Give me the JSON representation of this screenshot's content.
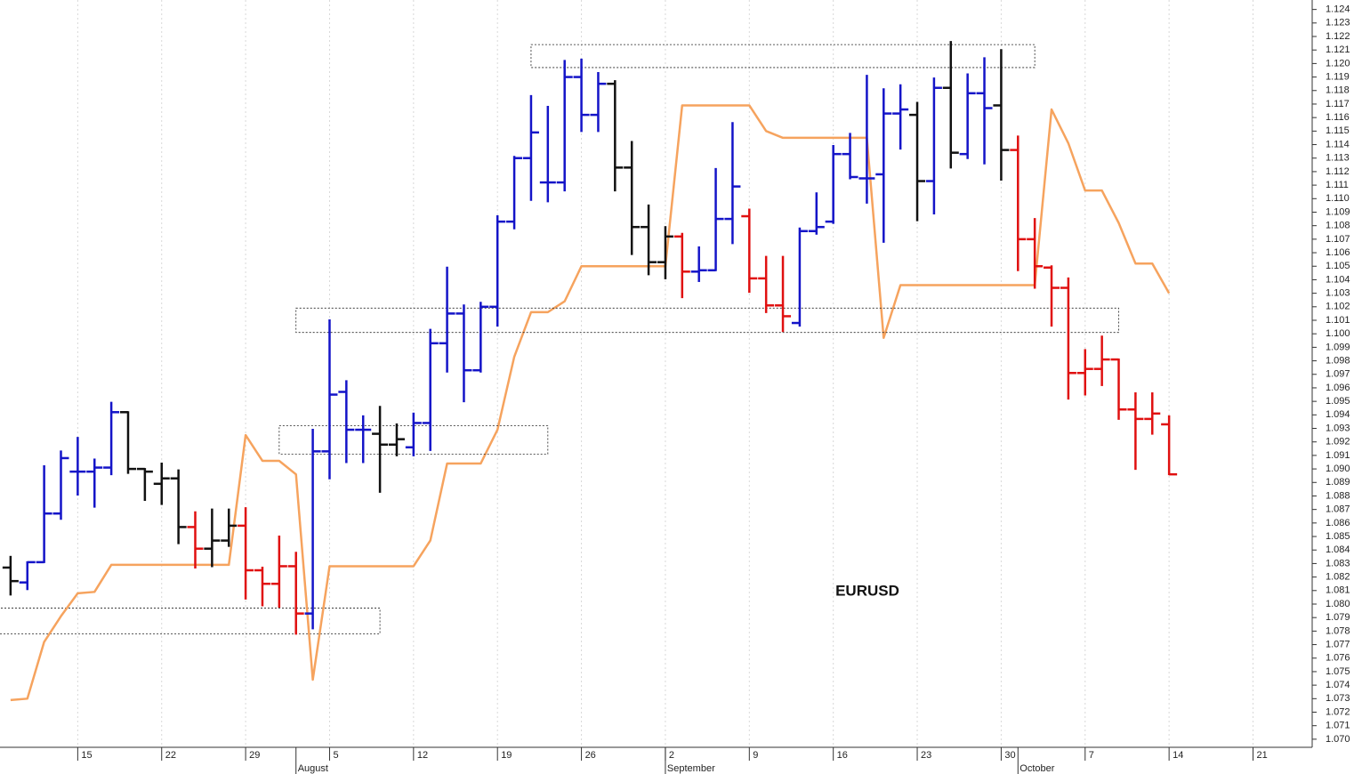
{
  "chart_data": {
    "type": "ohlc",
    "annotation": "EURUSD",
    "x": [
      "07-09",
      "07-10",
      "07-11",
      "07-12",
      "07-15",
      "07-16",
      "07-17",
      "07-18",
      "07-19",
      "07-22",
      "07-23",
      "07-24",
      "07-25",
      "07-26",
      "07-29",
      "07-30",
      "07-31",
      "08-01",
      "08-02",
      "08-05",
      "08-06",
      "08-07",
      "08-08",
      "08-09",
      "08-12",
      "08-13",
      "08-14",
      "08-15",
      "08-16",
      "08-19",
      "08-20",
      "08-21",
      "08-22",
      "08-23",
      "08-26",
      "08-27",
      "08-28",
      "08-29",
      "08-30",
      "09-02",
      "09-03",
      "09-04",
      "09-05",
      "09-06",
      "09-09",
      "09-10",
      "09-11",
      "09-12",
      "09-13",
      "09-16",
      "09-17",
      "09-18",
      "09-19",
      "09-20",
      "09-23",
      "09-24",
      "09-25",
      "09-26",
      "09-27",
      "09-30",
      "10-01",
      "10-02",
      "10-03",
      "10-04",
      "10-07",
      "10-08",
      "10-09",
      "10-10",
      "10-11",
      "10-14"
    ],
    "open": [
      1.0827,
      1.0816,
      1.0831,
      1.0867,
      1.0898,
      1.0898,
      1.0901,
      1.0942,
      1.09,
      1.0889,
      1.0893,
      1.0857,
      1.0841,
      1.0847,
      1.0858,
      1.0825,
      1.0815,
      1.0828,
      1.0793,
      1.0913,
      1.0957,
      1.0929,
      1.0926,
      1.0918,
      1.0916,
      1.0934,
      1.0993,
      1.1015,
      1.0973,
      1.102,
      1.1083,
      1.113,
      1.1112,
      1.1112,
      1.119,
      1.1162,
      1.1185,
      1.1123,
      1.1079,
      1.1053,
      1.1072,
      1.1046,
      1.1047,
      1.1085,
      1.1087,
      1.1041,
      1.1021,
      1.1008,
      1.1076,
      1.1083,
      1.1133,
      1.1115,
      1.1118,
      1.1163,
      1.1162,
      1.1113,
      1.1182,
      1.1133,
      1.1178,
      1.1169,
      1.1136,
      1.107,
      1.1049,
      1.1034,
      1.0971,
      1.0974,
      1.0981,
      1.0944,
      1.0937,
      1.0933
    ],
    "high": [
      1.0835,
      1.0831,
      1.0902,
      1.0913,
      1.0923,
      1.0907,
      1.0949,
      1.0942,
      1.09,
      1.0904,
      1.0899,
      1.0868,
      1.087,
      1.087,
      1.0871,
      1.0827,
      1.085,
      1.0838,
      1.0929,
      1.101,
      1.0965,
      1.0939,
      1.0946,
      1.0933,
      1.0941,
      1.1003,
      1.1049,
      1.1021,
      1.1023,
      1.1087,
      1.1131,
      1.1176,
      1.1168,
      1.1202,
      1.1203,
      1.1193,
      1.1187,
      1.1142,
      1.1095,
      1.1079,
      1.1074,
      1.1064,
      1.1122,
      1.1156,
      1.1092,
      1.1057,
      1.1057,
      1.1078,
      1.1104,
      1.1139,
      1.1148,
      1.1191,
      1.1181,
      1.1184,
      1.1171,
      1.1189,
      1.1216,
      1.1192,
      1.1204,
      1.121,
      1.1146,
      1.1085,
      1.105,
      1.1041,
      1.0988,
      1.0998,
      1.0981,
      1.0956,
      1.0956,
      1.0939
    ],
    "low": [
      1.0807,
      1.0811,
      1.0831,
      1.0863,
      1.0881,
      1.0872,
      1.0896,
      1.0897,
      1.0877,
      1.0874,
      1.0845,
      1.0827,
      1.0828,
      1.0843,
      1.0804,
      1.0799,
      1.0798,
      1.0778,
      1.0782,
      1.0893,
      1.0905,
      1.0905,
      1.0883,
      1.091,
      1.091,
      1.0914,
      1.0972,
      1.095,
      1.0972,
      1.1006,
      1.1078,
      1.1099,
      1.1098,
      1.1106,
      1.115,
      1.115,
      1.1106,
      1.1059,
      1.1044,
      1.1041,
      1.1027,
      1.1039,
      1.1047,
      1.1067,
      1.1031,
      1.1016,
      1.1002,
      1.1006,
      1.1074,
      1.1082,
      1.1115,
      1.1097,
      1.1068,
      1.1137,
      1.1084,
      1.1089,
      1.1123,
      1.113,
      1.1126,
      1.1114,
      1.1047,
      1.1034,
      1.1006,
      1.0952,
      1.0955,
      1.0962,
      1.0937,
      1.09,
      1.0926,
      1.0896
    ],
    "close": [
      1.0817,
      1.0831,
      1.0867,
      1.0908,
      1.0898,
      1.0901,
      1.0942,
      1.09,
      1.0898,
      1.0893,
      1.0857,
      1.0841,
      1.0847,
      1.0858,
      1.0825,
      1.0815,
      1.0828,
      1.0793,
      1.0913,
      1.0955,
      1.0929,
      1.0929,
      1.0918,
      1.0922,
      1.0934,
      1.0993,
      1.1015,
      1.0973,
      1.102,
      1.1083,
      1.113,
      1.1149,
      1.1112,
      1.119,
      1.1162,
      1.1185,
      1.1123,
      1.1079,
      1.1053,
      1.1072,
      1.1046,
      1.1047,
      1.1085,
      1.1109,
      1.1041,
      1.1021,
      1.1013,
      1.1076,
      1.1079,
      1.1133,
      1.1116,
      1.1115,
      1.1163,
      1.1166,
      1.1113,
      1.1182,
      1.1134,
      1.1178,
      1.1167,
      1.1136,
      1.107,
      1.105,
      1.1034,
      1.0971,
      1.0974,
      1.0981,
      1.0944,
      1.0937,
      1.0941,
      1.0896
    ],
    "bar_colors": [
      "#111111",
      "#1414c8",
      "#1414c8",
      "#1414c8",
      "#1414c8",
      "#1414c8",
      "#1414c8",
      "#111111",
      "#111111",
      "#111111",
      "#111111",
      "#e01010",
      "#111111",
      "#111111",
      "#e01010",
      "#e01010",
      "#e01010",
      "#e01010",
      "#1414c8",
      "#1414c8",
      "#1414c8",
      "#1414c8",
      "#111111",
      "#111111",
      "#1414c8",
      "#1414c8",
      "#1414c8",
      "#1414c8",
      "#1414c8",
      "#1414c8",
      "#1414c8",
      "#1414c8",
      "#1414c8",
      "#1414c8",
      "#1414c8",
      "#1414c8",
      "#111111",
      "#111111",
      "#111111",
      "#111111",
      "#e01010",
      "#1414c8",
      "#1414c8",
      "#1414c8",
      "#e01010",
      "#e01010",
      "#e01010",
      "#1414c8",
      "#1414c8",
      "#1414c8",
      "#1414c8",
      "#1414c8",
      "#1414c8",
      "#1414c8",
      "#111111",
      "#1414c8",
      "#111111",
      "#1414c8",
      "#1414c8",
      "#111111",
      "#e01010",
      "#e01010",
      "#e01010",
      "#e01010",
      "#e01010",
      "#e01010",
      "#e01010",
      "#e01010",
      "#e01010",
      "#e01010"
    ],
    "line": {
      "color": "#f6a35e",
      "values": [
        1.0729,
        1.073,
        1.0772,
        1.0791,
        1.0808,
        1.0809,
        1.0829,
        1.0829,
        1.0829,
        1.0829,
        1.0829,
        1.0829,
        1.0829,
        1.0829,
        1.0925,
        1.0906,
        1.0906,
        1.0896,
        1.0744,
        1.0828,
        1.0828,
        1.0828,
        1.0828,
        1.0828,
        1.0828,
        1.0847,
        1.0904,
        1.0904,
        1.0904,
        1.0929,
        1.0983,
        1.1016,
        1.1016,
        1.1024,
        1.105,
        1.105,
        1.105,
        1.105,
        1.105,
        1.105,
        1.1169,
        1.1169,
        1.1169,
        1.1169,
        1.1169,
        1.115,
        1.1145,
        1.1145,
        1.1145,
        1.1145,
        1.1145,
        1.1145,
        1.0997,
        1.1036,
        1.1036,
        1.1036,
        1.1036,
        1.1036,
        1.1036,
        1.1036,
        1.1036,
        1.1036,
        1.1166,
        1.1141,
        1.1106,
        1.1106,
        1.1082,
        1.1052,
        1.1052,
        1.103
      ]
    },
    "zones": [
      {
        "x": [
          "07-08",
          "08-08"
        ],
        "y": [
          1.0778,
          1.0797
        ]
      },
      {
        "x": [
          "07-31",
          "08-22"
        ],
        "y": [
          1.0911,
          1.0932
        ]
      },
      {
        "x": [
          "08-01",
          "10-09"
        ],
        "y": [
          1.1001,
          1.1019
        ]
      },
      {
        "x": [
          "08-21",
          "10-02"
        ],
        "y": [
          1.1197,
          1.1214
        ]
      }
    ],
    "xlim": [
      "07-08",
      "10-25"
    ],
    "xticks": [
      {
        "value": "07-15",
        "label": "15"
      },
      {
        "value": "07-22",
        "label": "22"
      },
      {
        "value": "07-29",
        "label": "29"
      },
      {
        "value": "08-05",
        "label": "5"
      },
      {
        "value": "08-12",
        "label": "12"
      },
      {
        "value": "08-19",
        "label": "19"
      },
      {
        "value": "08-26",
        "label": "26"
      },
      {
        "value": "09-02",
        "label": "2"
      },
      {
        "value": "09-09",
        "label": "9"
      },
      {
        "value": "09-16",
        "label": "16"
      },
      {
        "value": "09-23",
        "label": "23"
      },
      {
        "value": "09-30",
        "label": "30"
      },
      {
        "value": "10-07",
        "label": "7"
      },
      {
        "value": "10-14",
        "label": "14"
      },
      {
        "value": "10-21",
        "label": "21"
      }
    ],
    "month_ticks": [
      {
        "value": "08-01",
        "label": "August"
      },
      {
        "value": "09-02",
        "label": "September"
      },
      {
        "value": "10-01",
        "label": "October"
      }
    ],
    "grid": true,
    "ylim": [
      1.0694,
      1.1247
    ],
    "yticks": [
      {
        "value": 1.07,
        "label": "1.070"
      },
      {
        "value": 1.071,
        "label": "1.071"
      },
      {
        "value": 1.072,
        "label": "1.072"
      },
      {
        "value": 1.073,
        "label": "1.073"
      },
      {
        "value": 1.074,
        "label": "1.074"
      },
      {
        "value": 1.075,
        "label": "1.075"
      },
      {
        "value": 1.076,
        "label": "1.076"
      },
      {
        "value": 1.077,
        "label": "1.077"
      },
      {
        "value": 1.078,
        "label": "1.078"
      },
      {
        "value": 1.079,
        "label": "1.079"
      },
      {
        "value": 1.08,
        "label": "1.080"
      },
      {
        "value": 1.081,
        "label": "1.081"
      },
      {
        "value": 1.082,
        "label": "1.082"
      },
      {
        "value": 1.083,
        "label": "1.083"
      },
      {
        "value": 1.084,
        "label": "1.084"
      },
      {
        "value": 1.085,
        "label": "1.085"
      },
      {
        "value": 1.086,
        "label": "1.086"
      },
      {
        "value": 1.087,
        "label": "1.087"
      },
      {
        "value": 1.088,
        "label": "1.088"
      },
      {
        "value": 1.089,
        "label": "1.089"
      },
      {
        "value": 1.09,
        "label": "1.090"
      },
      {
        "value": 1.091,
        "label": "1.091"
      },
      {
        "value": 1.092,
        "label": "1.092"
      },
      {
        "value": 1.093,
        "label": "1.093"
      },
      {
        "value": 1.094,
        "label": "1.094"
      },
      {
        "value": 1.095,
        "label": "1.095"
      },
      {
        "value": 1.096,
        "label": "1.096"
      },
      {
        "value": 1.097,
        "label": "1.097"
      },
      {
        "value": 1.098,
        "label": "1.098"
      },
      {
        "value": 1.099,
        "label": "1.099"
      },
      {
        "value": 1.1,
        "label": "1.100"
      },
      {
        "value": 1.101,
        "label": "1.101"
      },
      {
        "value": 1.102,
        "label": "1.102"
      },
      {
        "value": 1.103,
        "label": "1.103"
      },
      {
        "value": 1.104,
        "label": "1.104"
      },
      {
        "value": 1.105,
        "label": "1.105"
      },
      {
        "value": 1.106,
        "label": "1.106"
      },
      {
        "value": 1.107,
        "label": "1.107"
      },
      {
        "value": 1.108,
        "label": "1.108"
      },
      {
        "value": 1.109,
        "label": "1.109"
      },
      {
        "value": 1.11,
        "label": "1.110"
      },
      {
        "value": 1.111,
        "label": "1.111"
      },
      {
        "value": 1.112,
        "label": "1.112"
      },
      {
        "value": 1.113,
        "label": "1.113"
      },
      {
        "value": 1.114,
        "label": "1.114"
      },
      {
        "value": 1.115,
        "label": "1.115"
      },
      {
        "value": 1.116,
        "label": "1.116"
      },
      {
        "value": 1.117,
        "label": "1.117"
      },
      {
        "value": 1.118,
        "label": "1.118"
      },
      {
        "value": 1.119,
        "label": "1.119"
      },
      {
        "value": 1.12,
        "label": "1.120"
      },
      {
        "value": 1.121,
        "label": "1.121"
      },
      {
        "value": 1.122,
        "label": "1.122"
      },
      {
        "value": 1.123,
        "label": "1.123"
      },
      {
        "value": 1.124,
        "label": "1.124"
      }
    ]
  }
}
